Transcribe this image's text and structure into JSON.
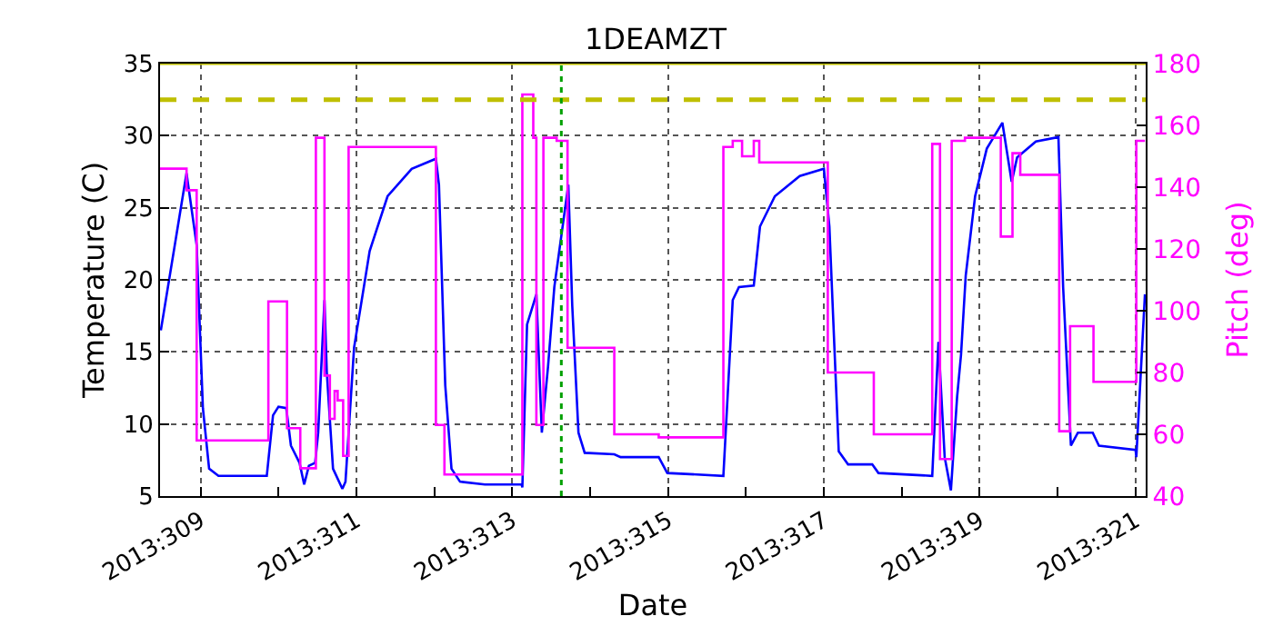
{
  "chart_data": {
    "type": "line",
    "title": "1DEAMZT",
    "xlabel": "Date",
    "ylabel": "Temperature (C)",
    "y2label": "Pitch (deg)",
    "xlim": [
      "2013-11-04T11:31",
      "2013-11-17T03:07"
    ],
    "xticks": [
      {
        "value": "2013-11-05",
        "label": "2013:309"
      },
      {
        "value": "2013-11-06",
        "label": null
      },
      {
        "value": "2013-11-07",
        "label": "2013:311"
      },
      {
        "value": "2013-11-08",
        "label": null
      },
      {
        "value": "2013-11-09",
        "label": "2013:313"
      },
      {
        "value": "2013-11-10",
        "label": null
      },
      {
        "value": "2013-11-11",
        "label": "2013:315"
      },
      {
        "value": "2013-11-12",
        "label": null
      },
      {
        "value": "2013-11-13",
        "label": "2013:317"
      },
      {
        "value": "2013-11-14",
        "label": null
      },
      {
        "value": "2013-11-15",
        "label": "2013:319"
      },
      {
        "value": "2013-11-16",
        "label": null
      },
      {
        "value": "2013-11-17",
        "label": "2013:321"
      }
    ],
    "ylim": [
      5,
      35
    ],
    "yticks": [
      5,
      10,
      15,
      20,
      25,
      30,
      35
    ],
    "y2lim": [
      40,
      180
    ],
    "y2ticks": [
      40,
      60,
      80,
      100,
      120,
      140,
      160,
      180
    ],
    "grid": true,
    "legend": false,
    "line_style": "solid",
    "marker": "none",
    "ref_lines": [
      {
        "axis": "y",
        "value": 32.5,
        "color": "#bfbf00",
        "line_style": "dashed"
      },
      {
        "axis": "y",
        "value": 35,
        "color": "#bfbf00",
        "line_style": "solid"
      },
      {
        "axis": "x",
        "value": "2013-11-09T15:07",
        "color": "#00a000",
        "line_style": "dotted"
      }
    ],
    "series": [
      {
        "color": "#0000ff",
        "x": [
          "2013-11-04T11:46",
          "2013-11-04T19:41",
          "2013-11-04T22:48",
          "2013-11-05T00:43",
          "2013-11-05T02:38",
          "2013-11-05T05:31",
          "2013-11-05T20:24",
          "2013-11-05T22:19",
          "2013-11-06T00:00",
          "2013-11-06T02:24",
          "2013-11-06T03:50",
          "2013-11-06T06:29",
          "2013-11-06T07:55",
          "2013-11-06T09:22",
          "2013-11-06T11:17",
          "2013-11-06T12:14",
          "2013-11-06T14:10",
          "2013-11-06T14:53",
          "2013-11-06T16:48",
          "2013-11-06T19:41",
          "2013-11-06T20:38",
          "2013-11-06T23:17",
          "2013-11-07T04:05",
          "2013-11-07T09:36",
          "2013-11-07T17:02",
          "2013-11-08T00:29",
          "2013-11-08T01:26",
          "2013-11-08T03:22",
          "2013-11-08T05:17",
          "2013-11-08T07:55",
          "2013-11-08T15:36",
          "2013-11-09T02:53",
          "2013-11-09T03:07",
          "2013-11-09T04:34",
          "2013-11-09T07:26",
          "2013-11-09T09:07",
          "2013-11-09T11:02",
          "2013-11-09T12:58",
          "2013-11-09T17:17",
          "2013-11-09T18:29",
          "2013-11-09T20:24",
          "2013-11-09T22:19",
          "2013-11-10T07:26",
          "2013-11-10T09:22",
          "2013-11-10T21:07",
          "2013-11-10T23:46",
          "2013-11-11T17:02",
          "2013-11-11T19:55",
          "2013-11-11T21:50",
          "2013-11-12T02:24",
          "2013-11-12T04:19",
          "2013-11-12T08:53",
          "2013-11-12T16:34",
          "2013-11-13T00:00",
          "2013-11-13T01:41",
          "2013-11-13T04:34",
          "2013-11-13T07:26",
          "2013-11-13T14:53",
          "2013-11-13T16:48",
          "2013-11-14T09:22",
          "2013-11-14T11:17",
          "2013-11-14T13:12",
          "2013-11-14T15:07",
          "2013-11-14T17:02",
          "2013-11-14T18:14",
          "2013-11-14T19:41",
          "2013-11-14T22:34",
          "2013-11-15T02:10",
          "2013-11-15T06:58",
          "2013-11-15T09:50",
          "2013-11-15T11:31",
          "2013-11-15T17:17",
          "2013-11-16T00:14",
          "2013-11-16T01:41",
          "2013-11-16T04:05",
          "2013-11-16T06:14",
          "2013-11-16T10:48",
          "2013-11-16T12:43",
          "2013-11-17T00:00",
          "2013-11-17T00:14",
          "2013-11-17T02:53"
        ],
        "values": [
          16.5,
          27.4,
          22.4,
          11.1,
          6.9,
          6.4,
          6.4,
          10.6,
          11.2,
          11.1,
          8.5,
          7.3,
          5.8,
          7.1,
          7.3,
          9.4,
          18.6,
          13.6,
          6.9,
          5.5,
          6.0,
          15.3,
          22.0,
          25.8,
          27.7,
          28.4,
          26.6,
          12.7,
          6.9,
          6.0,
          5.8,
          5.8,
          5.6,
          16.9,
          19.0,
          9.4,
          14.0,
          19.5,
          26.6,
          18.2,
          9.4,
          8.0,
          7.9,
          7.7,
          7.7,
          6.6,
          6.4,
          18.6,
          19.5,
          19.6,
          23.7,
          25.8,
          27.2,
          27.7,
          23.7,
          8.1,
          7.2,
          7.2,
          6.6,
          6.4,
          15.7,
          7.7,
          5.4,
          11.9,
          14.8,
          20.3,
          25.8,
          29.1,
          30.9,
          26.8,
          28.5,
          29.6,
          29.9,
          19.5,
          8.5,
          9.4,
          9.4,
          8.5,
          8.2,
          7.7,
          19.0
        ]
      },
      {
        "type": "step",
        "axis": "y2",
        "color": "#ff00ff",
        "x": [
          "2013-11-04T11:31",
          "2013-11-04T19:41",
          "2013-11-04T22:48",
          "2013-11-05T20:53",
          "2013-11-06T02:38",
          "2013-11-06T06:43",
          "2013-11-06T11:31",
          "2013-11-06T14:10",
          "2013-11-06T15:50",
          "2013-11-06T17:17",
          "2013-11-06T18:14",
          "2013-11-06T19:55",
          "2013-11-06T21:36",
          "2013-11-08T00:29",
          "2013-11-08T03:07",
          "2013-11-09T03:07",
          "2013-11-09T06:29",
          "2013-11-09T07:26",
          "2013-11-09T09:36",
          "2013-11-09T13:41",
          "2013-11-09T17:02",
          "2013-11-10T07:26",
          "2013-11-10T21:07",
          "2013-11-11T17:02",
          "2013-11-11T19:55",
          "2013-11-11T22:48",
          "2013-11-12T02:24",
          "2013-11-12T04:05",
          "2013-11-13T01:12",
          "2013-11-13T15:22",
          "2013-11-14T09:22",
          "2013-11-14T11:46",
          "2013-11-14T15:22",
          "2013-11-14T19:26",
          "2013-11-15T06:29",
          "2013-11-15T10:05",
          "2013-11-15T12:29",
          "2013-11-16T00:29",
          "2013-11-16T03:50",
          "2013-11-16T11:02",
          "2013-11-17T00:14",
          "2013-11-17T02:53"
        ],
        "values": [
          146,
          139,
          58,
          103,
          62,
          49,
          156,
          79,
          65,
          74,
          71,
          53,
          153,
          63,
          47,
          170,
          156,
          63,
          156,
          155,
          88,
          60,
          59,
          153,
          155,
          150,
          155,
          148,
          80,
          60,
          154,
          52,
          155,
          156,
          124,
          151,
          144,
          61,
          95,
          77,
          155,
          155
        ]
      }
    ]
  }
}
